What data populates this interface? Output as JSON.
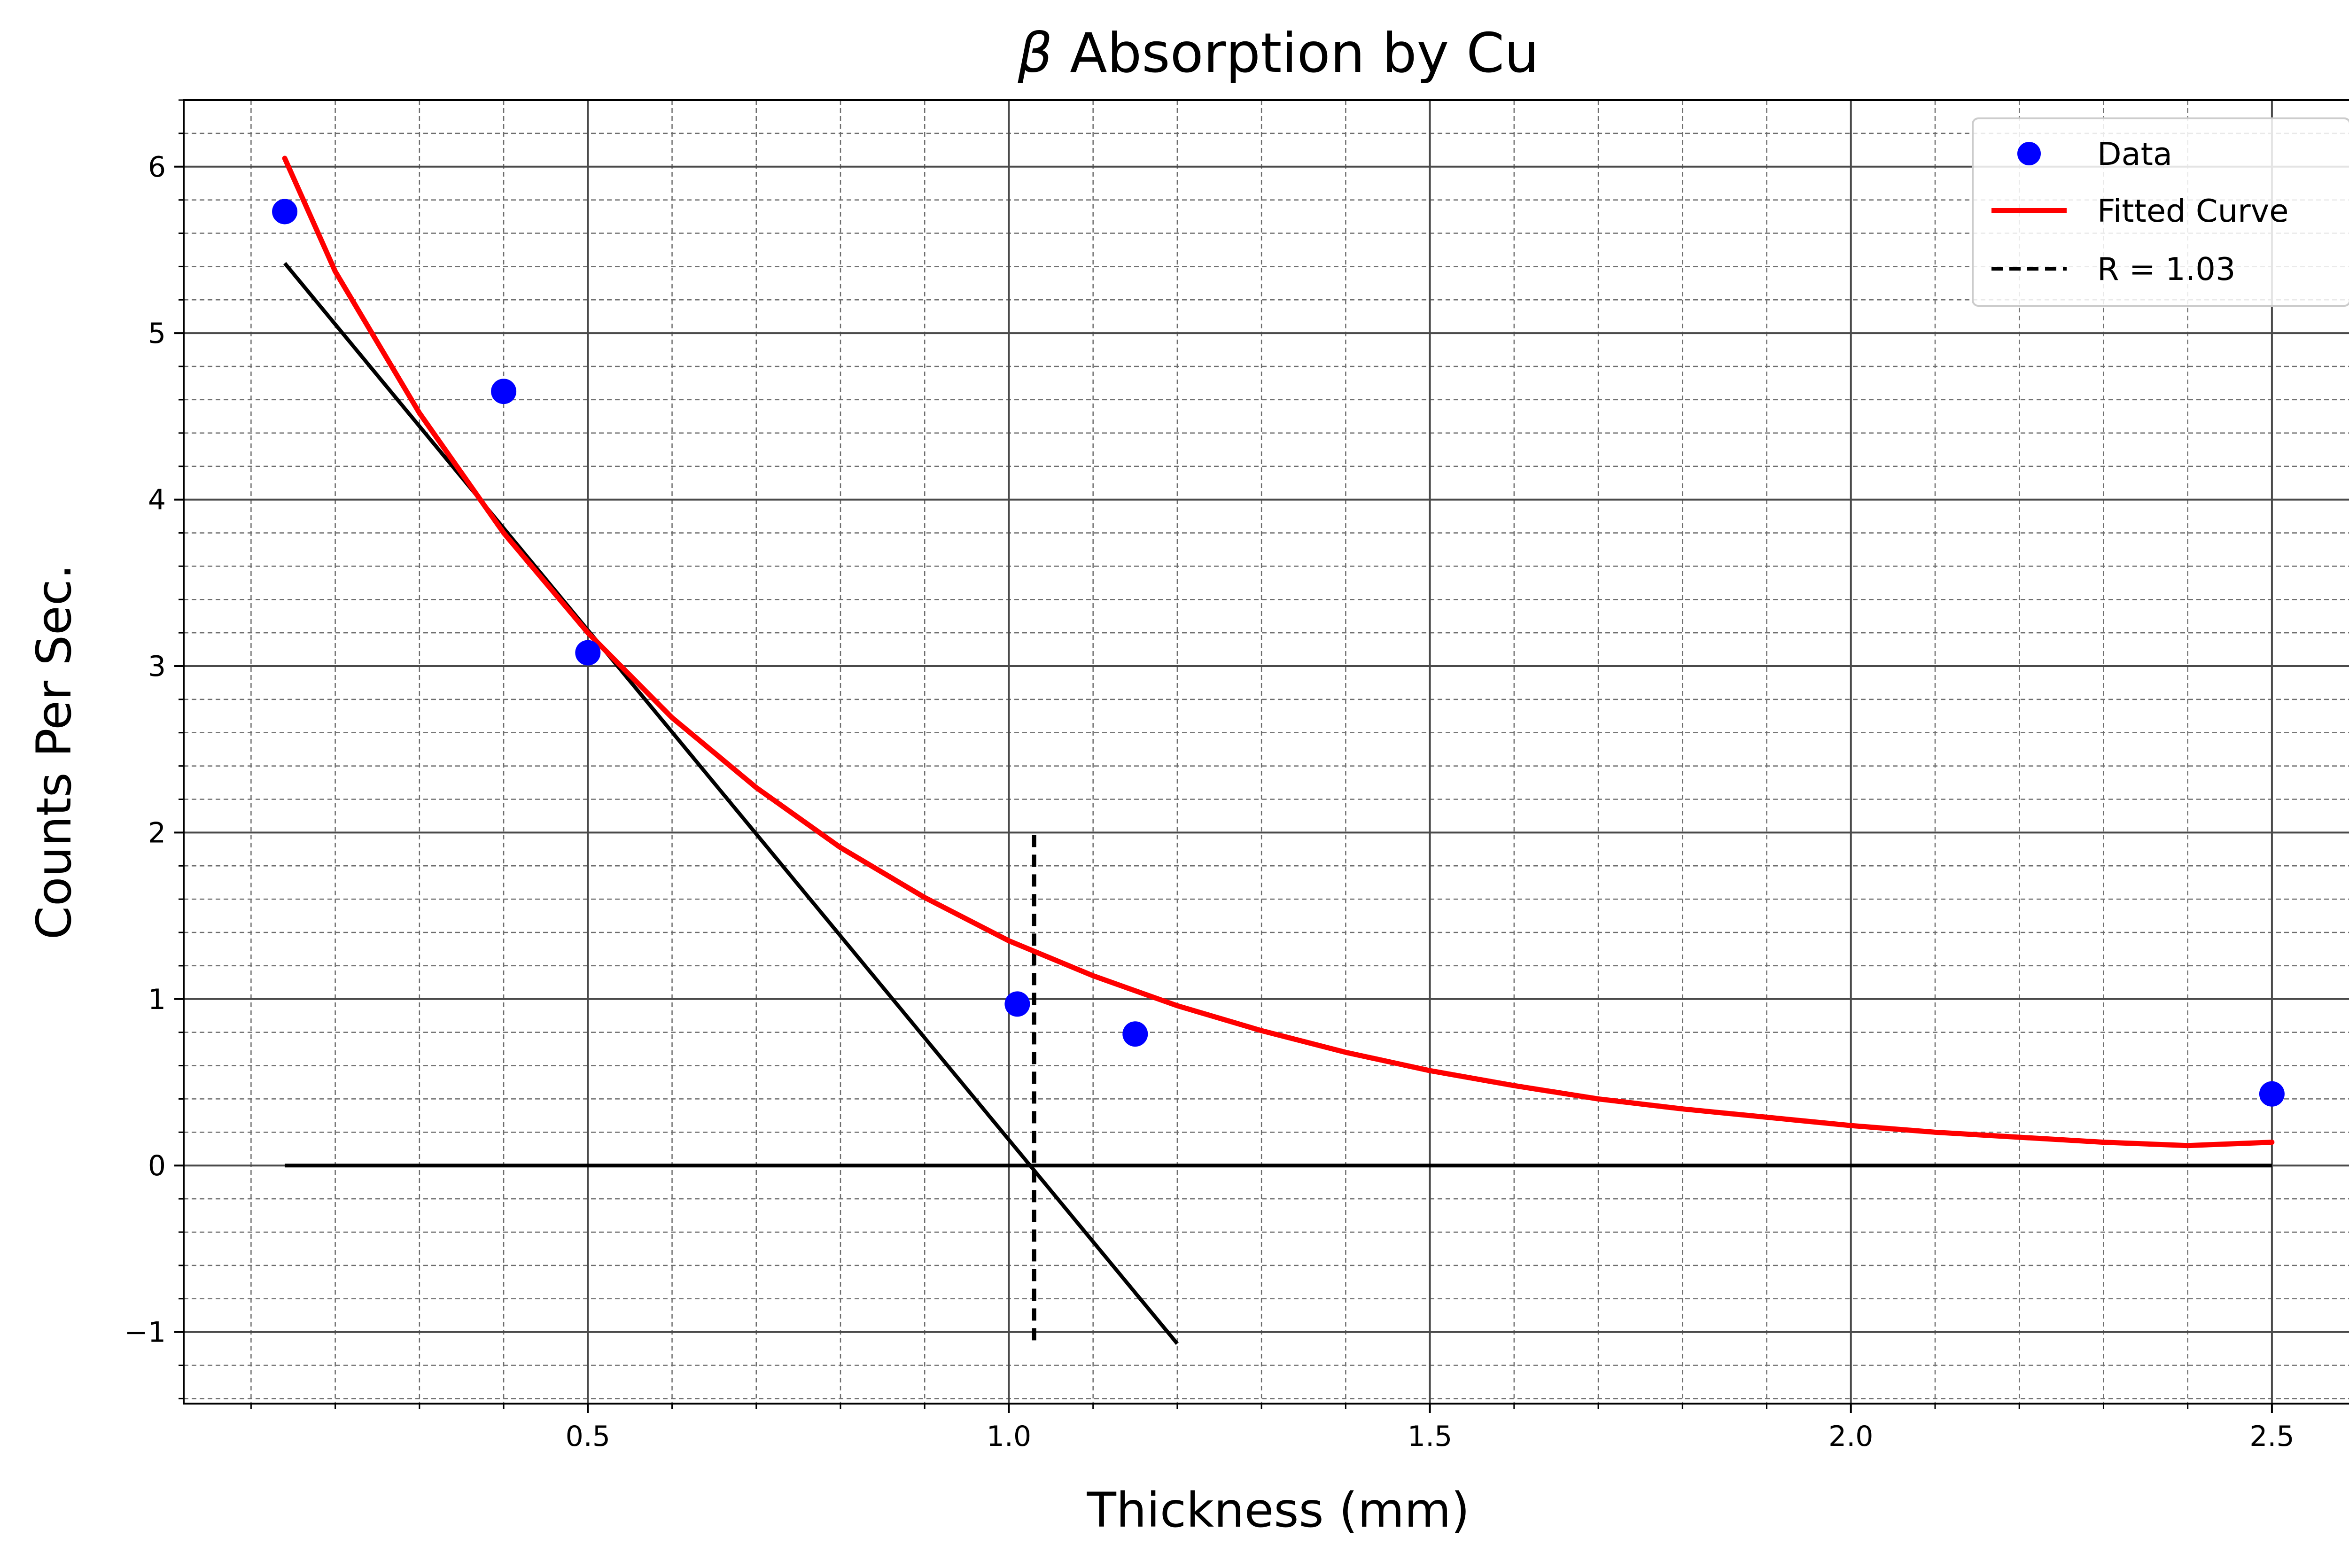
{
  "chart_data": {
    "type": "scatter",
    "title_symbol": "β",
    "title_text": " Absorption by Cu",
    "xlabel": "Thickness (mm)",
    "ylabel": "Counts Per Sec.",
    "xlim": [
      0.02,
      2.62
    ],
    "ylim": [
      -1.43,
      6.4
    ],
    "x_ticks": [
      0.5,
      1.0,
      1.5,
      2.0,
      2.5
    ],
    "x_tick_labels": [
      "0.5",
      "1.0",
      "1.5",
      "2.0",
      "2.5"
    ],
    "x_minor_step": 0.1,
    "y_ticks": [
      -1,
      0,
      1,
      2,
      3,
      4,
      5,
      6
    ],
    "y_tick_labels": [
      "−1",
      "0",
      "1",
      "2",
      "3",
      "4",
      "5",
      "6"
    ],
    "y_minor_step": 0.2,
    "grid": true,
    "legend_position": "top-right",
    "colors": {
      "data": "#0000ff",
      "fit": "#ff0000",
      "lines": "#000000",
      "major_grid": "#4a4a4a",
      "minor_grid": "#6e6e6e"
    },
    "series": [
      {
        "name": "Data",
        "kind": "scatter",
        "x": [
          0.14,
          0.4,
          0.5,
          1.01,
          1.15,
          2.5
        ],
        "y": [
          5.73,
          4.65,
          3.08,
          0.97,
          0.79,
          0.43
        ]
      },
      {
        "name": "Fitted Curve",
        "kind": "curve",
        "x": [
          0.14,
          0.2,
          0.3,
          0.4,
          0.5,
          0.6,
          0.7,
          0.8,
          0.9,
          1.0,
          1.1,
          1.2,
          1.3,
          1.4,
          1.5,
          1.6,
          1.7,
          1.8,
          1.9,
          2.0,
          2.1,
          2.2,
          2.3,
          2.4,
          2.5
        ],
        "y": [
          6.05,
          5.37,
          4.52,
          3.8,
          3.2,
          2.69,
          2.27,
          1.91,
          1.61,
          1.35,
          1.14,
          0.96,
          0.81,
          0.68,
          0.57,
          0.48,
          0.4,
          0.34,
          0.29,
          0.24,
          0.2,
          0.17,
          0.14,
          0.12,
          0.14
        ]
      },
      {
        "name": "R = 1.03",
        "kind": "vline",
        "x": 1.03,
        "y": [
          -1.05,
          2.0
        ]
      },
      {
        "kind": "tangent",
        "x": [
          0.14,
          1.2
        ],
        "y": [
          5.42,
          -1.07
        ]
      },
      {
        "kind": "baseline",
        "x": [
          0.14,
          2.5
        ],
        "y": [
          0,
          0
        ]
      }
    ]
  }
}
